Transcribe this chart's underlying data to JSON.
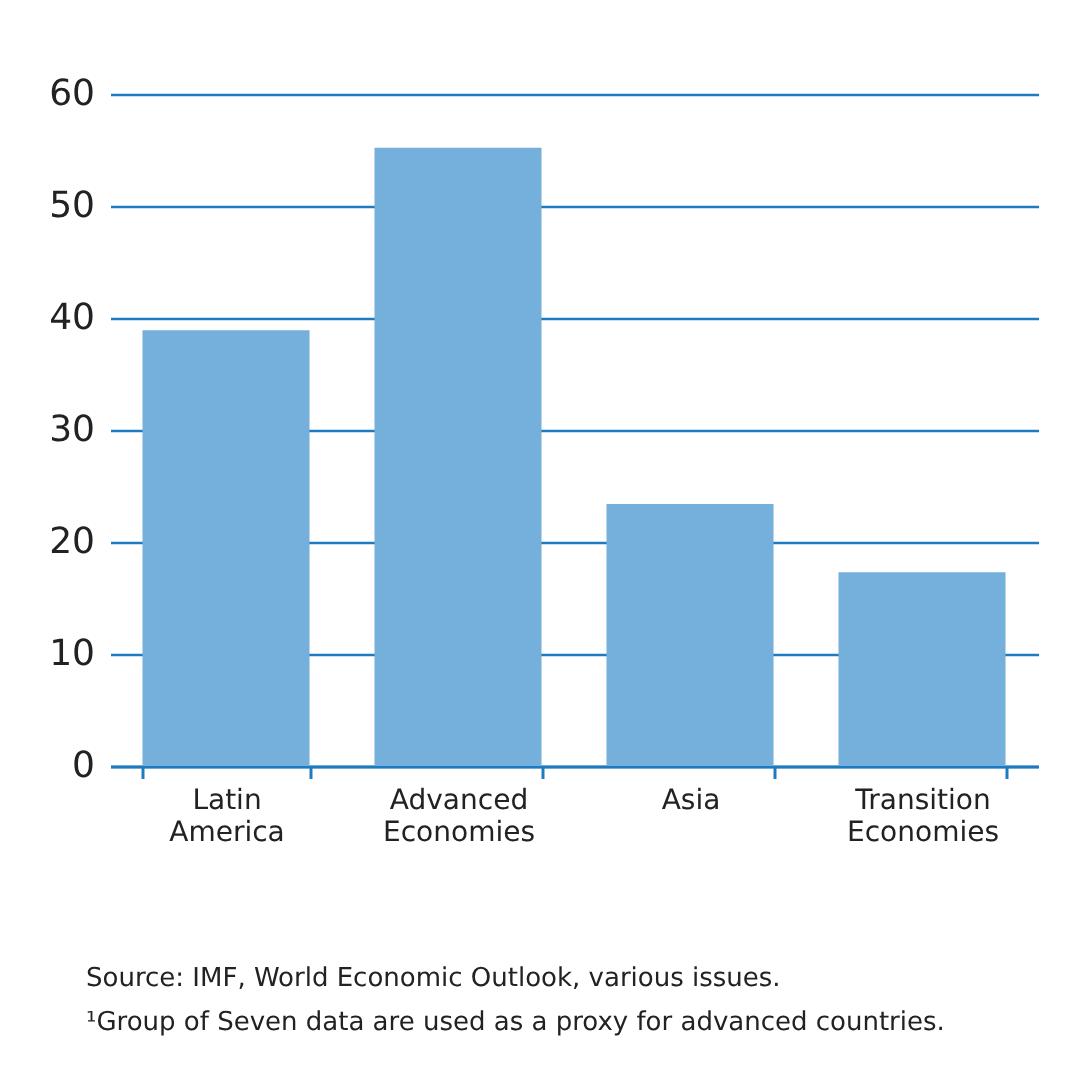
{
  "chart_data": {
    "type": "bar",
    "categories": [
      "Latin America",
      "Advanced Economies",
      "Asia",
      "Transition Economies"
    ],
    "values": [
      38.9,
      55.2,
      23.4,
      17.3
    ],
    "color": "#74b0db",
    "ylim": [
      0,
      60
    ],
    "yticks": [
      0,
      10,
      20,
      30,
      40,
      50,
      60
    ],
    "grid": "y",
    "annotations": [
      "Source: IMF, World Economic Outlook, various issues.",
      "¹Group of Seven data are used as a proxy for advanced countries."
    ]
  }
}
